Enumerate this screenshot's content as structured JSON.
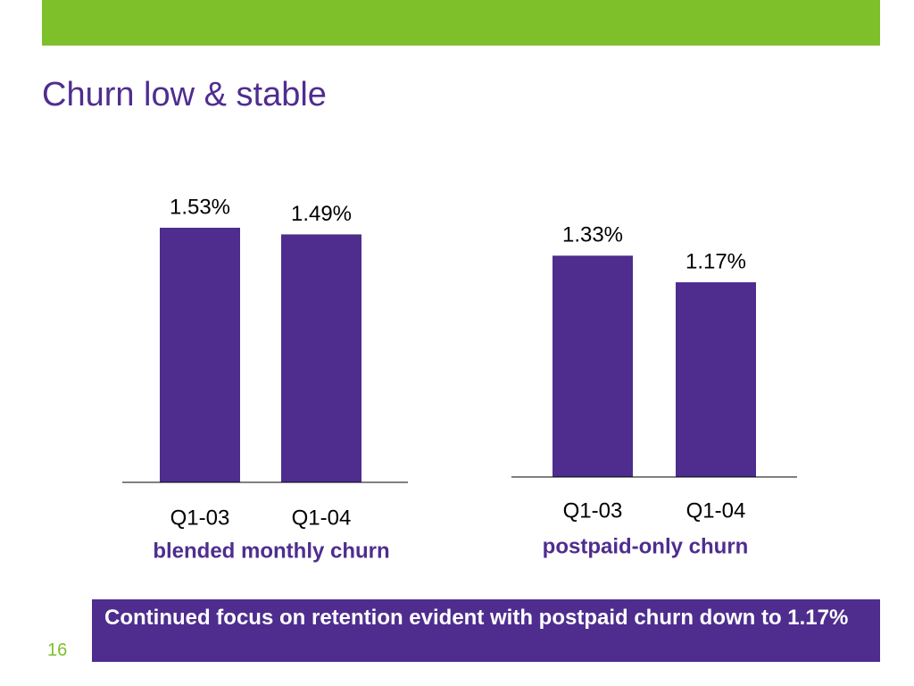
{
  "slide": {
    "title": "Churn low & stable",
    "page_number": "16",
    "callout": "Continued focus on retention evident with postpaid churn down to 1.17%"
  },
  "colors": {
    "accent_bar": "#7dc02a",
    "title": "#4f2d8f",
    "bar_fill": "#4e2d8e",
    "callout_bg": "#4e2d8e",
    "callout_text": "#ffffff"
  },
  "chart_data": [
    {
      "type": "bar",
      "caption": "blended monthly churn",
      "categories": [
        "Q1-03",
        "Q1-04"
      ],
      "values": [
        1.53,
        1.49
      ],
      "data_labels": [
        "1.53%",
        "1.49%"
      ],
      "unit": "%",
      "ylim": [
        0,
        1.6
      ],
      "grid": false,
      "legend": "none"
    },
    {
      "type": "bar",
      "caption": "postpaid-only churn",
      "categories": [
        "Q1-03",
        "Q1-04"
      ],
      "values": [
        1.33,
        1.17
      ],
      "data_labels": [
        "1.33%",
        "1.17%"
      ],
      "unit": "%",
      "ylim": [
        0,
        1.6
      ],
      "grid": false,
      "legend": "none"
    }
  ]
}
